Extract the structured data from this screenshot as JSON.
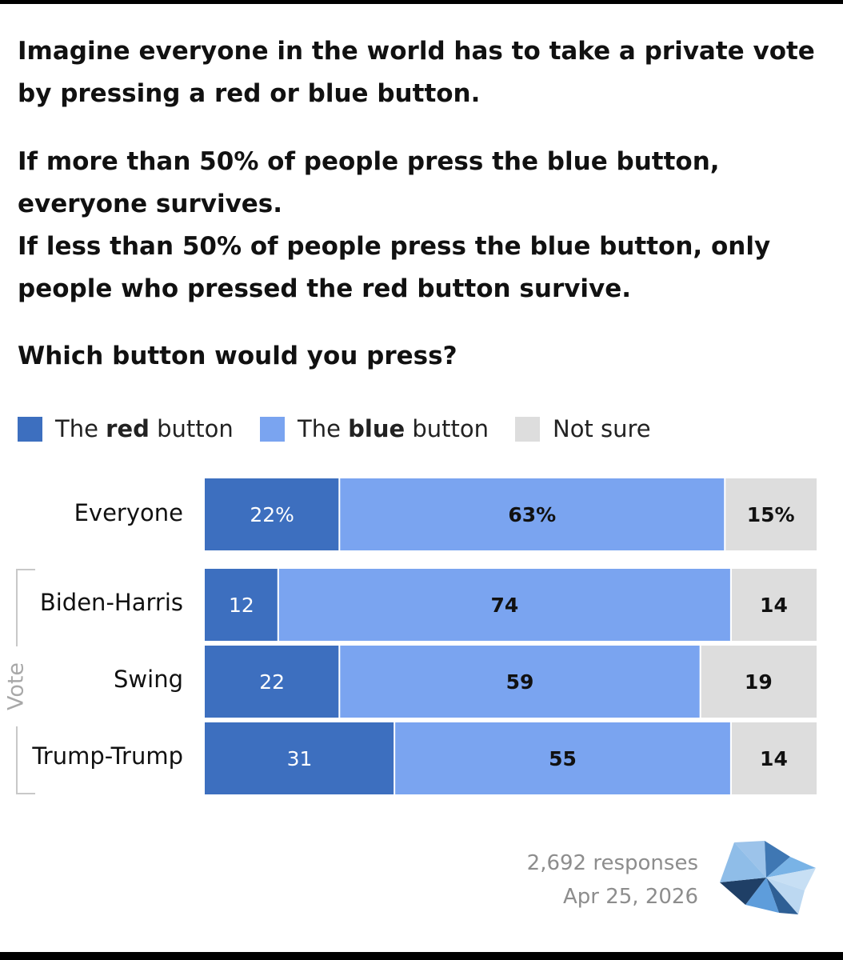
{
  "intro": "Imagine everyone in the world has to take a private vote by pressing a red or blue button.",
  "rules": [
    "If more than 50% of people press the blue button, everyone survives.",
    "If less than 50% of people press the blue button, only people who pressed the red button survive."
  ],
  "question": "Which button would you press?",
  "legend": [
    {
      "pre": "The ",
      "bold": "red",
      "post": " button",
      "color": "#3d6fbf"
    },
    {
      "pre": "The ",
      "bold": "blue",
      "post": " button",
      "color": "#7aa4f0"
    },
    {
      "pre": "",
      "bold": "",
      "post": "Not sure",
      "color": "#dddddd"
    }
  ],
  "group_label": "Vote",
  "chart_data": {
    "type": "bar",
    "orientation": "horizontal",
    "stacked": true,
    "title": "Which button would you press?",
    "categories": [
      "Everyone",
      "Biden-Harris",
      "Swing",
      "Trump-Trump"
    ],
    "series": [
      {
        "name": "The red button",
        "values": [
          22,
          12,
          22,
          31
        ],
        "color": "#3d6fbf",
        "label_color": "#ffffff",
        "label_weight": "normal"
      },
      {
        "name": "The blue button",
        "values": [
          63,
          74,
          59,
          55
        ],
        "color": "#7aa4f0",
        "label_color": "#111111",
        "label_weight": "bold"
      },
      {
        "name": "Not sure",
        "values": [
          15,
          14,
          19,
          14
        ],
        "color": "#dddddd",
        "label_color": "#111111",
        "label_weight": "bold"
      }
    ],
    "data_labels": [
      [
        "22%",
        "12",
        "22",
        "31"
      ],
      [
        "63%",
        "74",
        "59",
        "55"
      ],
      [
        "15%",
        "14",
        "19",
        "14"
      ]
    ],
    "xlim": [
      0,
      100
    ],
    "unit": "%",
    "legend_position": "top"
  },
  "footer": {
    "responses": "2,692 responses",
    "date": "Apr 25, 2026"
  },
  "logo_icon": "pinwheel-logo-icon"
}
